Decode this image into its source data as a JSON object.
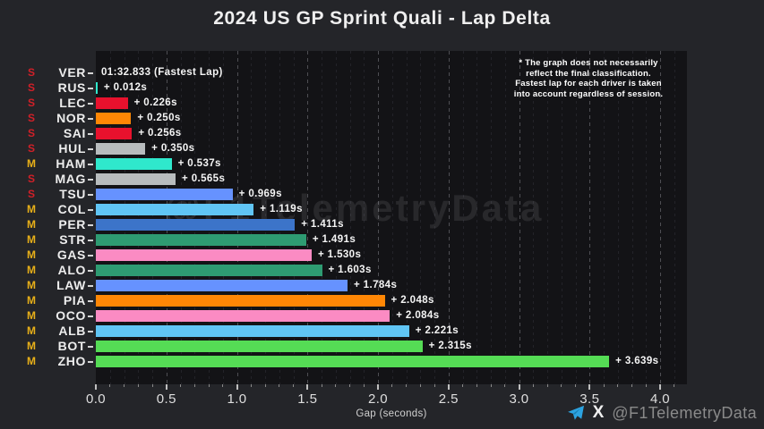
{
  "title": "2024 US GP Sprint Quali - Lap Delta",
  "disclaimer": {
    "lines": [
      "* The graph does not necessarily",
      "reflect the final classification.",
      "Fastest lap for each driver is taken",
      "into account regardless of session."
    ]
  },
  "watermark": "@F1TelemetryData",
  "footer": {
    "x_logo": "X",
    "handle": "@F1TelemetryData",
    "telegram_color": "#2CA3E0"
  },
  "axis": {
    "xlabel": "Gap (seconds)",
    "major_tick_labels": [
      "0.0",
      "0.5",
      "1.0",
      "1.5",
      "2.0",
      "2.5",
      "3.0",
      "3.5",
      "4.0"
    ],
    "major_tick_values": [
      0,
      0.5,
      1.0,
      1.5,
      2.0,
      2.5,
      3.0,
      3.5,
      4.0
    ],
    "minor_tick_step": 0.1,
    "x_max": 4.19
  },
  "tyre_colors": {
    "S": "#D12028",
    "M": "#E8B019"
  },
  "chart_data": {
    "type": "bar",
    "orientation": "horizontal",
    "title": "2024 US GP Sprint Quali - Lap Delta",
    "xlabel": "Gap (seconds)",
    "xlim": [
      0,
      4.19
    ],
    "grid": "vertical dashed, major every 0.5s, minor every 0.1s",
    "fastest_lap_time": "01:32.833",
    "categories": [
      "VER",
      "RUS",
      "LEC",
      "NOR",
      "SAI",
      "HUL",
      "HAM",
      "MAG",
      "TSU",
      "COL",
      "PER",
      "STR",
      "GAS",
      "ALO",
      "LAW",
      "PIA",
      "OCO",
      "ALB",
      "BOT",
      "ZHO"
    ],
    "values": [
      0.0,
      0.012,
      0.226,
      0.25,
      0.256,
      0.35,
      0.537,
      0.565,
      0.969,
      1.119,
      1.411,
      1.491,
      1.53,
      1.603,
      1.784,
      2.048,
      2.084,
      2.221,
      2.315,
      3.639
    ],
    "drivers": [
      {
        "code": "VER",
        "tyre": "S",
        "delta_s": 0.0,
        "bar_label": "01:32.833 (Fastest Lap)",
        "color": "#3C74C9"
      },
      {
        "code": "RUS",
        "tyre": "S",
        "delta_s": 0.012,
        "bar_label": "+ 0.012s",
        "color": "#2FE8CC"
      },
      {
        "code": "LEC",
        "tyre": "S",
        "delta_s": 0.226,
        "bar_label": "+ 0.226s",
        "color": "#E8112D"
      },
      {
        "code": "NOR",
        "tyre": "S",
        "delta_s": 0.25,
        "bar_label": "+ 0.250s",
        "color": "#FF8705"
      },
      {
        "code": "SAI",
        "tyre": "S",
        "delta_s": 0.256,
        "bar_label": "+ 0.256s",
        "color": "#E8112D"
      },
      {
        "code": "HUL",
        "tyre": "S",
        "delta_s": 0.35,
        "bar_label": "+ 0.350s",
        "color": "#B8BCBE"
      },
      {
        "code": "HAM",
        "tyre": "M",
        "delta_s": 0.537,
        "bar_label": "+ 0.537s",
        "color": "#2FE8CC"
      },
      {
        "code": "MAG",
        "tyre": "S",
        "delta_s": 0.565,
        "bar_label": "+ 0.565s",
        "color": "#B8BCBE"
      },
      {
        "code": "TSU",
        "tyre": "S",
        "delta_s": 0.969,
        "bar_label": "+ 0.969s",
        "color": "#6692FF"
      },
      {
        "code": "COL",
        "tyre": "M",
        "delta_s": 1.119,
        "bar_label": "+ 1.119s",
        "color": "#60C5F5"
      },
      {
        "code": "PER",
        "tyre": "M",
        "delta_s": 1.411,
        "bar_label": "+ 1.411s",
        "color": "#3C74C9"
      },
      {
        "code": "STR",
        "tyre": "M",
        "delta_s": 1.491,
        "bar_label": "+ 1.491s",
        "color": "#2E9B72"
      },
      {
        "code": "GAS",
        "tyre": "M",
        "delta_s": 1.53,
        "bar_label": "+ 1.530s",
        "color": "#FB8BC3"
      },
      {
        "code": "ALO",
        "tyre": "M",
        "delta_s": 1.603,
        "bar_label": "+ 1.603s",
        "color": "#2E9B72"
      },
      {
        "code": "LAW",
        "tyre": "M",
        "delta_s": 1.784,
        "bar_label": "+ 1.784s",
        "color": "#6692FF"
      },
      {
        "code": "PIA",
        "tyre": "M",
        "delta_s": 2.048,
        "bar_label": "+ 2.048s",
        "color": "#FF8705"
      },
      {
        "code": "OCO",
        "tyre": "M",
        "delta_s": 2.084,
        "bar_label": "+ 2.084s",
        "color": "#FB8BC3"
      },
      {
        "code": "ALB",
        "tyre": "M",
        "delta_s": 2.221,
        "bar_label": "+ 2.221s",
        "color": "#60C5F5"
      },
      {
        "code": "BOT",
        "tyre": "M",
        "delta_s": 2.315,
        "bar_label": "+ 2.315s",
        "color": "#55DC55"
      },
      {
        "code": "ZHO",
        "tyre": "M",
        "delta_s": 3.639,
        "bar_label": "+ 3.639s",
        "color": "#55DC55"
      }
    ]
  }
}
